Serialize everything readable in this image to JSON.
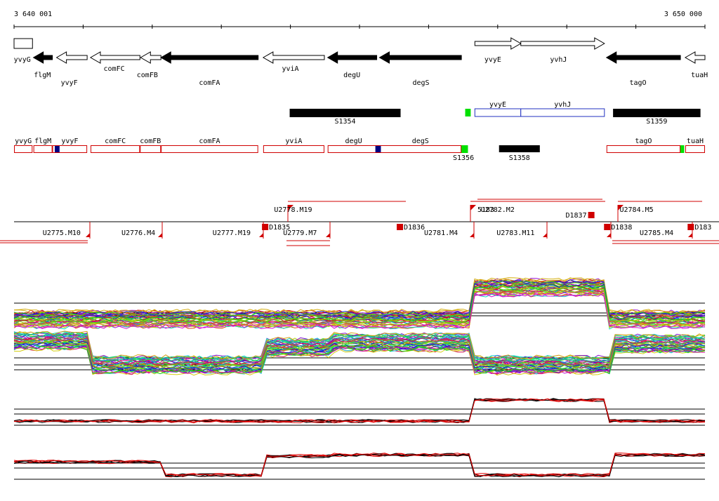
{
  "ruler": {
    "start_label": "3 640 001",
    "end_label": "3 650 000",
    "start_bp": 3640001,
    "end_bp": 3650000
  },
  "genes": [
    {
      "name": "yvyG",
      "start": 3640001,
      "end": 3640268,
      "strand": "+",
      "filled": false,
      "label_bp": 3640120,
      "label_row": 1
    },
    {
      "name": "flgM",
      "start": 3640282,
      "end": 3640556,
      "strand": "-",
      "filled": true,
      "label_bp": 3640410,
      "label_row": 2
    },
    {
      "name": "yvyF",
      "start": 3640617,
      "end": 3641059,
      "strand": "-",
      "filled": false,
      "label_bp": 3640800,
      "label_row": 3
    },
    {
      "name": "comFC",
      "start": 3641108,
      "end": 3641823,
      "strand": "-",
      "filled": false,
      "label_bp": 3641450,
      "label_row": 1
    },
    {
      "name": "comFB",
      "start": 3641833,
      "end": 3642127,
      "strand": "-",
      "filled": false,
      "label_bp": 3641930,
      "label_row": 2
    },
    {
      "name": "comFA",
      "start": 3642127,
      "end": 3643534,
      "strand": "-",
      "filled": true,
      "label_bp": 3642830,
      "label_row": 3
    },
    {
      "name": "yviA",
      "start": 3643607,
      "end": 3644492,
      "strand": "-",
      "filled": false,
      "label_bp": 3644000,
      "label_row": 1
    },
    {
      "name": "degU",
      "start": 3644540,
      "end": 3645250,
      "strand": "-",
      "filled": true,
      "label_bp": 3644890,
      "label_row": 2
    },
    {
      "name": "degS",
      "start": 3645290,
      "end": 3646475,
      "strand": "-",
      "filled": true,
      "label_bp": 3645890,
      "label_row": 3
    },
    {
      "name": "yvyE",
      "start": 3646670,
      "end": 3647335,
      "strand": "+",
      "filled": false,
      "label_bp": 3646930,
      "label_row": 1
    },
    {
      "name": "yvhJ",
      "start": 3647335,
      "end": 3648545,
      "strand": "+",
      "filled": false,
      "label_bp": 3647880,
      "label_row": 2
    },
    {
      "name": "tagO",
      "start": 3648575,
      "end": 3649645,
      "strand": "-",
      "filled": true,
      "label_bp": 3649030,
      "label_row": 3
    },
    {
      "name": "tuaH",
      "start": 3649715,
      "end": 3650000,
      "strand": "-",
      "filled": false,
      "label_bp": 3649920,
      "label_row": 2
    }
  ],
  "operon_blocks": [
    {
      "name": "S1354",
      "start": 3643990,
      "end": 3645595
    },
    {
      "name": "S1359",
      "start": 3648670,
      "end": 3649935
    }
  ],
  "transcript_units_blue": [
    {
      "start": 3646670,
      "end": 3647335,
      "label": "yvyE"
    },
    {
      "start": 3647335,
      "end": 3648545,
      "label": "yvhJ"
    }
  ],
  "green_marks": [
    {
      "start": 3646530,
      "end": 3646610,
      "row": "upper",
      "label": ""
    },
    {
      "start": 3646440,
      "end": 3646570,
      "row": "lower",
      "label": "S1356"
    },
    {
      "start": 3649605,
      "end": 3649700,
      "row": "lower",
      "label": ""
    }
  ],
  "cds_boxes": [
    {
      "name": "yvyG",
      "start": 3640001,
      "end": 3640268
    },
    {
      "name": "flgM",
      "start": 3640282,
      "end": 3640556
    },
    {
      "name": "yvyF",
      "start": 3640556,
      "end": 3641059
    },
    {
      "name": "comFC",
      "start": 3641108,
      "end": 3641823
    },
    {
      "name": "comFB",
      "start": 3641823,
      "end": 3642127
    },
    {
      "name": "comFA",
      "start": 3642127,
      "end": 3643534
    },
    {
      "name": "yviA",
      "start": 3643607,
      "end": 3644492
    },
    {
      "name": "degU",
      "start": 3644540,
      "end": 3645290
    },
    {
      "name": "degS",
      "start": 3645290,
      "end": 3646475
    },
    {
      "name": "tagO",
      "start": 3648575,
      "end": 3649645
    },
    {
      "name": "tuaH",
      "start": 3649715,
      "end": 3650000
    }
  ],
  "blue_marks": [
    {
      "start": 3640590,
      "end": 3640660
    },
    {
      "start": 3645230,
      "end": 3645310
    }
  ],
  "black_bar_lower": {
    "name": "S1358",
    "start": 3647020,
    "end": 3647610
  },
  "segments_lower": [
    {
      "name": "U2775.M10",
      "label_bp": 3640690
    },
    {
      "name": "U2776.M4",
      "label_bp": 3641800
    },
    {
      "name": "U2777.M19",
      "label_bp": 3643150
    },
    {
      "name": "U2779.M7",
      "label_bp": 3644140
    },
    {
      "name": "U2781.M4",
      "label_bp": 3646180
    },
    {
      "name": "U2783.M11",
      "label_bp": 3647260
    },
    {
      "name": "U2785.M4",
      "label_bp": 3649300
    }
  ],
  "segments_upper": [
    {
      "name": "U2778.M19",
      "label_bp": 3644040
    },
    {
      "name": "U2782.M2",
      "label_bp": 3647000
    },
    {
      "name": "U2784.M5",
      "label_bp": 3649010
    }
  ],
  "overlap_label": "5183",
  "breakpoints": [
    {
      "name": "D1835",
      "bp": 3643640
    },
    {
      "name": "D1836",
      "bp": 3645590
    },
    {
      "name": "D1837",
      "bp": 3648360
    },
    {
      "name": "D1838",
      "bp": 3648590
    },
    {
      "name": "D183",
      "bp": 3649800
    }
  ],
  "colors": {
    "cds": "#d00000",
    "operon": "#000000",
    "transcript": "#2030c0",
    "green": "#00e000",
    "blue_mark": "#000080",
    "profile_black": "#000000",
    "profile_red": "#e00000"
  }
}
